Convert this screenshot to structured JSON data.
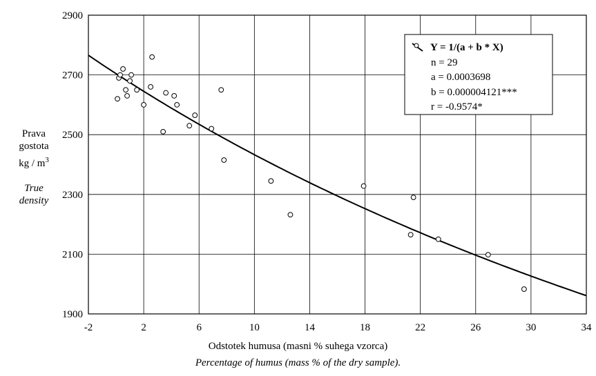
{
  "chart_data": {
    "type": "scatter",
    "xlim": [
      -2,
      34
    ],
    "ylim": [
      1900,
      2900
    ],
    "x_ticks": [
      "-2",
      "2",
      "6",
      "10",
      "14",
      "18",
      "22",
      "26",
      "30",
      "34"
    ],
    "y_ticks": [
      "1900",
      "2100",
      "2300",
      "2500",
      "2700",
      "2900"
    ],
    "grid": true,
    "ylabel": {
      "line1": "Prava",
      "line2": "gostota",
      "unit": "kg / m",
      "unit_sup": "3",
      "en_line1": "True",
      "en_line2": "density"
    },
    "xlabel": "Odstotek humusa (masni % suhega vzorca)",
    "xlabel_en": "Percentage of humus (mass % of the dry sample).",
    "legend": {
      "placement": "top-right",
      "lines": [
        "Y = 1/(a + b * X)",
        "n = 29",
        "a = 0.0003698",
        "b = 0.000004121***",
        "r = -0.9574*"
      ]
    },
    "points": [
      [
        0.1,
        2620
      ],
      [
        0.2,
        2690
      ],
      [
        0.3,
        2700
      ],
      [
        0.5,
        2720
      ],
      [
        0.7,
        2650
      ],
      [
        0.8,
        2630
      ],
      [
        1.0,
        2680
      ],
      [
        1.1,
        2700
      ],
      [
        1.5,
        2650
      ],
      [
        2.0,
        2600
      ],
      [
        2.5,
        2660
      ],
      [
        2.6,
        2760
      ],
      [
        3.4,
        2510
      ],
      [
        3.6,
        2640
      ],
      [
        4.2,
        2630
      ],
      [
        4.4,
        2600
      ],
      [
        5.3,
        2530
      ],
      [
        5.7,
        2565
      ],
      [
        6.9,
        2520
      ],
      [
        7.6,
        2650
      ],
      [
        7.8,
        2415
      ],
      [
        11.2,
        2345
      ],
      [
        12.6,
        2232
      ],
      [
        17.9,
        2328
      ],
      [
        21.3,
        2165
      ],
      [
        21.5,
        2290
      ],
      [
        23.3,
        2150
      ],
      [
        26.9,
        2098
      ],
      [
        29.5,
        1983
      ]
    ],
    "fit": {
      "a": 0.0003698,
      "b": 4.121e-06,
      "x_range": [
        -2,
        34
      ]
    }
  }
}
